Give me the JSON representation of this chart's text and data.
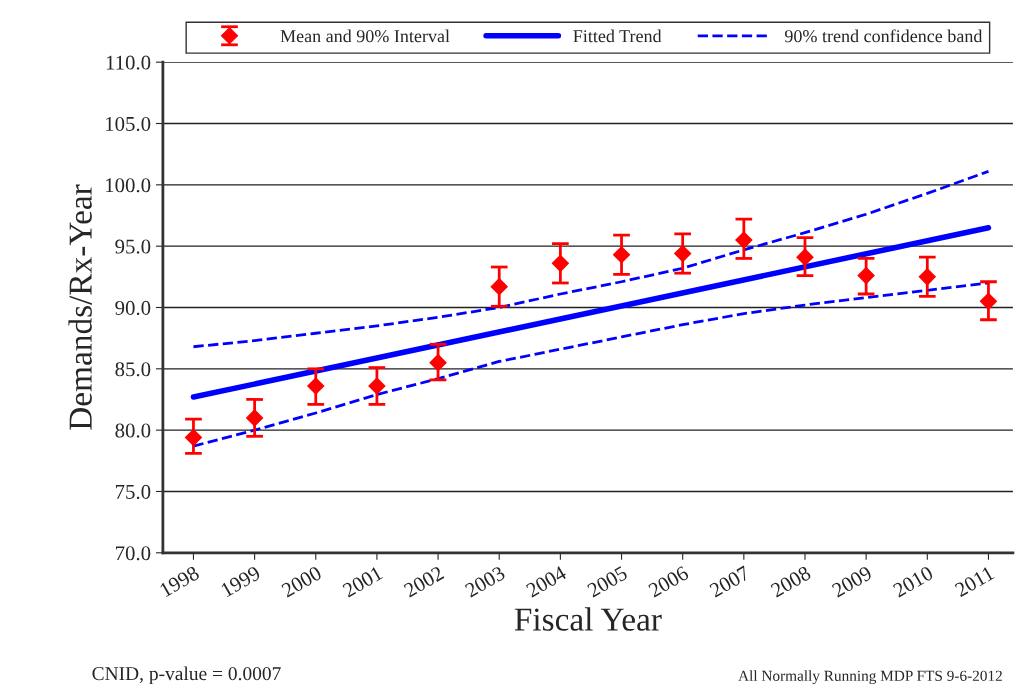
{
  "chart_data": {
    "type": "scatter",
    "xlabel": "Fiscal Year",
    "ylabel": "Demands/Rx-Year",
    "x": [
      1998,
      1999,
      2000,
      2001,
      2002,
      2003,
      2004,
      2005,
      2006,
      2007,
      2008,
      2009,
      2010,
      2011
    ],
    "series": [
      {
        "name": "Mean and 90% Interval",
        "color": "#ff0000",
        "marker": "diamond",
        "values": [
          79.4,
          81.0,
          83.6,
          83.6,
          85.5,
          91.7,
          93.6,
          94.3,
          94.4,
          95.5,
          94.1,
          92.6,
          92.5,
          90.5
        ],
        "errors": [
          [
            78.1,
            80.9
          ],
          [
            79.5,
            82.5
          ],
          [
            82.1,
            85.0
          ],
          [
            82.1,
            85.1
          ],
          [
            84.1,
            87.0
          ],
          [
            90.1,
            93.3
          ],
          [
            92.0,
            95.2
          ],
          [
            92.7,
            95.9
          ],
          [
            92.8,
            96.0
          ],
          [
            94.0,
            97.2
          ],
          [
            92.6,
            95.7
          ],
          [
            91.1,
            94.0
          ],
          [
            90.9,
            94.1
          ],
          [
            89.0,
            92.1
          ]
        ]
      },
      {
        "name": "Fitted Trend",
        "type": "line",
        "color": "#0000ff",
        "line_style": "solid",
        "x": [
          1998,
          2011
        ],
        "values": [
          82.7,
          96.5
        ]
      },
      {
        "name": "90% trend confidence band",
        "type": "line",
        "color": "#0000ff",
        "line_style": "dashed",
        "values": [
          86.8,
          87.3,
          87.9,
          88.5,
          89.2,
          90.0,
          91.1,
          92.1,
          93.2,
          94.7,
          96.1,
          97.6,
          99.3,
          101.1
        ]
      },
      {
        "type": "line",
        "color": "#0000ff",
        "line_style": "dashed",
        "values": [
          78.7,
          80.0,
          81.4,
          82.9,
          84.2,
          85.6,
          86.6,
          87.6,
          88.6,
          89.5,
          90.2,
          90.8,
          91.4,
          92.0
        ]
      }
    ],
    "xlim": [
      1997.5,
      2011.4
    ],
    "xticks": [
      1998,
      1999,
      2000,
      2001,
      2002,
      2003,
      2004,
      2005,
      2006,
      2007,
      2008,
      2009,
      2010,
      2011
    ],
    "ylim": [
      70,
      110
    ],
    "yticks": [
      {
        "value": 70,
        "label": "70.0"
      },
      {
        "value": 75,
        "label": "75.0"
      },
      {
        "value": 80,
        "label": "80.0"
      },
      {
        "value": 85,
        "label": "85.0"
      },
      {
        "value": 90,
        "label": "90.0"
      },
      {
        "value": 95,
        "label": "95.0"
      },
      {
        "value": 100,
        "label": "100.0"
      },
      {
        "value": 105,
        "label": "105.0"
      },
      {
        "value": 110,
        "label": "110.0"
      }
    ],
    "grid": "y",
    "legend": "top",
    "annotations": [
      "CNID, p-value = 0.0007",
      "All Normally Running MDP FTS 9-6-2012"
    ]
  }
}
